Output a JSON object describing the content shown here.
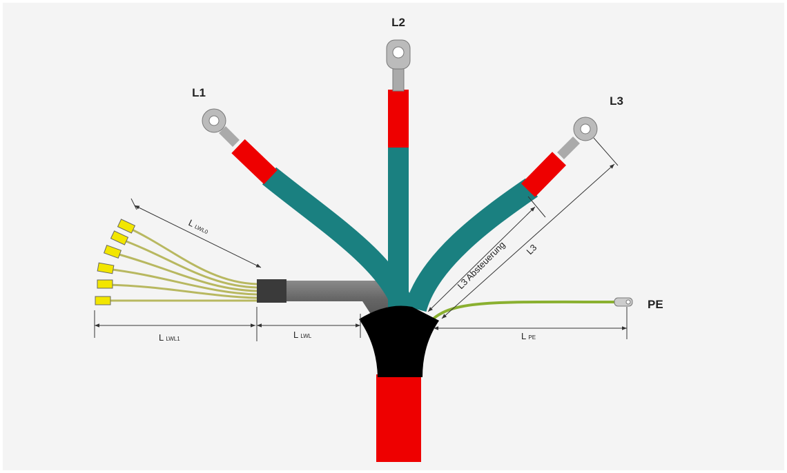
{
  "conductors": [
    {
      "label": "L1"
    },
    {
      "label": "L2"
    },
    {
      "label": "L3"
    },
    {
      "label": "PE"
    }
  ],
  "dimensions": [
    {
      "main": "L",
      "sub": "LWL0"
    },
    {
      "main": "L",
      "sub": "LWL1"
    },
    {
      "main": "L",
      "sub": "LWL"
    },
    {
      "main": "L",
      "sub": "PE"
    },
    {
      "label": "L3 Absteuerung"
    },
    {
      "label": "L3"
    }
  ]
}
